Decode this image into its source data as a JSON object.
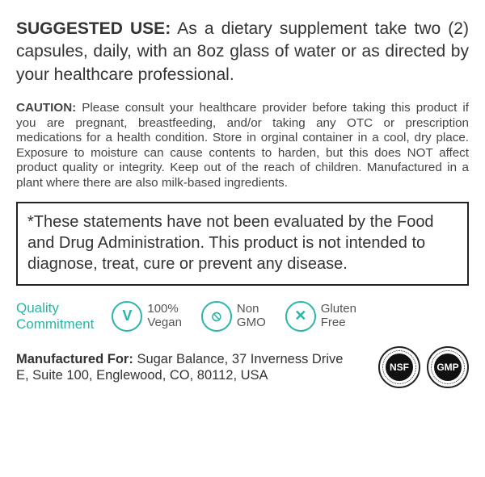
{
  "suggested": {
    "label": "SUGGESTED USE:",
    "text": "As a dietary supplement take two (2) capsules, daily, with an 8oz glass of water or as directed by your healthcare professional."
  },
  "caution": {
    "label": "CAUTION:",
    "text": "Please consult your healthcare provider before taking this product if you are pregnant, breastfeeding, and/or taking any OTC or prescription medications for a health condition.  Store in orginal container in a cool, dry place.  Exposure to moisture can cause contents to harden, but this does NOT affect product quality or integrity.  Keep out of the reach of children.  Manufactured in a plant where there are also milk-based ingredients."
  },
  "disclaimer": "*These statements have not been evaluated by the Food and Drug Administration. This product is not intended to diagnose, treat, cure or prevent any disease.",
  "quality": {
    "line1": "Quality",
    "line2": "Commitment"
  },
  "badges": {
    "vegan": {
      "line1": "100%",
      "line2": "Vegan",
      "glyph": "V"
    },
    "nongmo": {
      "line1": "Non",
      "line2": "GMO",
      "glyph": "⦸"
    },
    "gluten": {
      "line1": "Gluten",
      "line2": "Free",
      "glyph": "✕"
    }
  },
  "manufactured": {
    "label": "Manufactured For:",
    "text": "Sugar Balance, 37 Inverness Drive E, Suite 100, Englewood, CO, 80112, USA"
  },
  "certs": {
    "nsf": "NSF",
    "gmp": "GMP"
  },
  "colors": {
    "accent": "#2ab5a6",
    "text": "#333333",
    "border": "#222222"
  }
}
